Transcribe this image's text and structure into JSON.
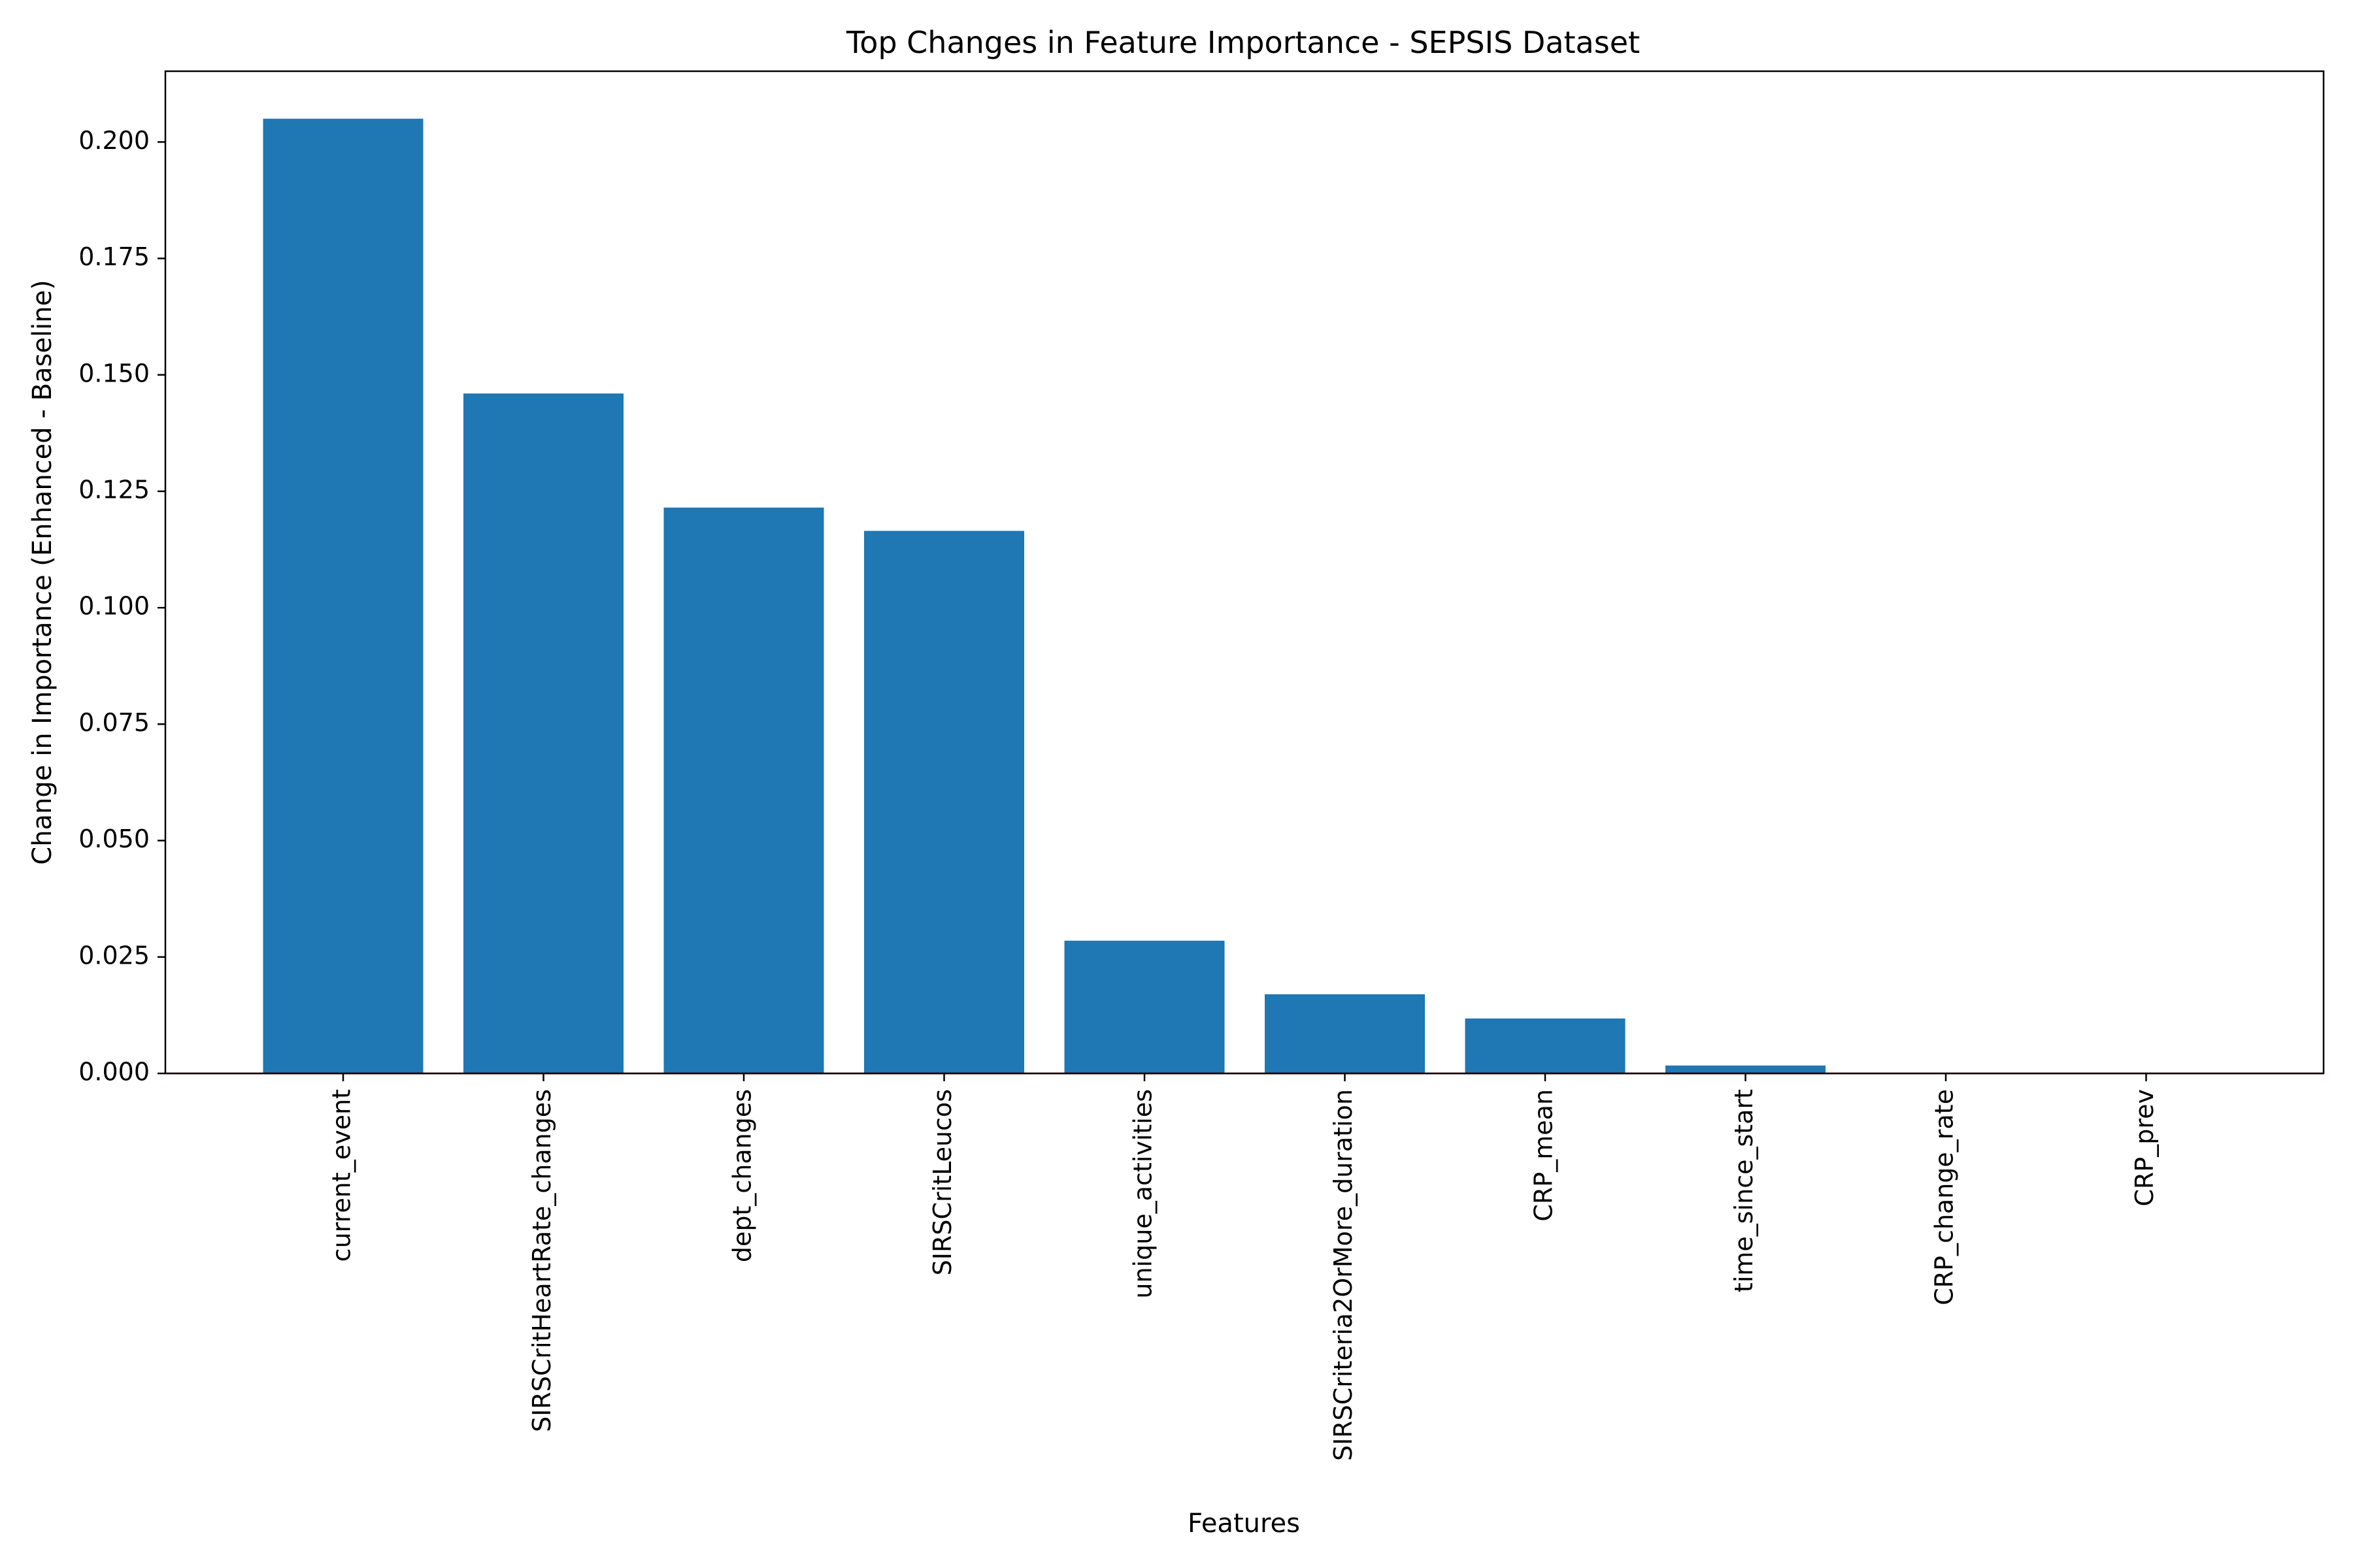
{
  "chart_data": {
    "type": "bar",
    "title": "Top Changes in Feature Importance - SEPSIS Dataset",
    "xlabel": "Features",
    "ylabel": "Change in Importance (Enhanced - Baseline)",
    "categories": [
      "current_event",
      "SIRSCritHeartRate_changes",
      "dept_changes",
      "SIRSCritLeucos",
      "unique_activities",
      "SIRSCriteria2OrMore_duration",
      "CRP_mean",
      "time_since_start",
      "CRP_change_rate",
      "CRP_prev"
    ],
    "values": [
      0.205,
      0.146,
      0.1215,
      0.1165,
      0.0285,
      0.017,
      0.0118,
      0.0017,
      0.0,
      0.0
    ],
    "ylim": [
      0,
      0.2152
    ],
    "yticks": [
      "0.000",
      "0.025",
      "0.050",
      "0.075",
      "0.100",
      "0.125",
      "0.150",
      "0.175",
      "0.200"
    ],
    "grid": false,
    "bar_color": "#1f77b4",
    "baseline_color": "#d62728"
  }
}
